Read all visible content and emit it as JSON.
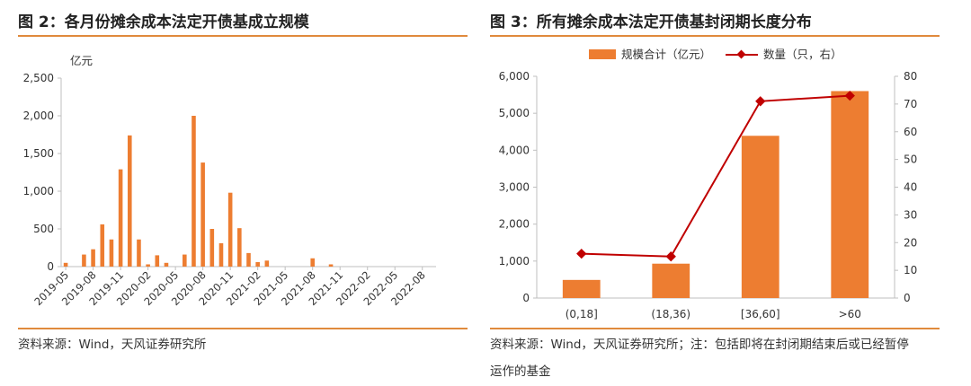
{
  "colors": {
    "bar": "#ed7d31",
    "line": "#c00000",
    "rule": "#e08a3c",
    "axis": "#bfbfbf",
    "text": "#333333"
  },
  "left": {
    "title": "图 2：各月份摊余成本法定开债基成立规模",
    "source": "资料来源：Wind，天风证券研究所"
  },
  "right": {
    "title": "图 3：所有摊余成本法定开债基封闭期长度分布",
    "source_line1": "资料来源：Wind，天风证券研究所；注：包括即将在封闭期结束后或已经暂停",
    "source_line2": "运作的基金"
  },
  "chart_data": [
    {
      "type": "bar",
      "ylabel": "亿元",
      "ylim": [
        0,
        2500
      ],
      "yticks": [
        "0",
        "500",
        "1,000",
        "1,500",
        "2,000",
        "2,500"
      ],
      "xtick_labels": [
        "2019-05",
        "2019-08",
        "2019-11",
        "2020-02",
        "2020-05",
        "2020-08",
        "2020-11",
        "2021-02",
        "2021-05",
        "2021-08",
        "2021-11",
        "2022-02",
        "2022-05",
        "2022-08"
      ],
      "categories": [
        "2019-05",
        "2019-06",
        "2019-07",
        "2019-08",
        "2019-09",
        "2019-10",
        "2019-11",
        "2019-12",
        "2020-01",
        "2020-02",
        "2020-03",
        "2020-04",
        "2020-05",
        "2020-06",
        "2020-07",
        "2020-08",
        "2020-09",
        "2020-10",
        "2020-11",
        "2020-12",
        "2021-01",
        "2021-02",
        "2021-03",
        "2021-04",
        "2021-05",
        "2021-06",
        "2021-07",
        "2021-08",
        "2021-09",
        "2021-10",
        "2021-11",
        "2021-12",
        "2022-01",
        "2022-02",
        "2022-03",
        "2022-04",
        "2022-05",
        "2022-06",
        "2022-07",
        "2022-08",
        "2022-09"
      ],
      "values": [
        50,
        0,
        160,
        230,
        560,
        360,
        1290,
        1740,
        360,
        30,
        150,
        50,
        0,
        160,
        2000,
        1380,
        500,
        310,
        980,
        510,
        180,
        60,
        80,
        0,
        0,
        0,
        0,
        110,
        0,
        30,
        0,
        0,
        0,
        0,
        0,
        0,
        0,
        0,
        0,
        0,
        0
      ],
      "grid": false
    },
    {
      "type": "bar+line",
      "categories": [
        "(0,18]",
        "(18,36)",
        "[36,60]",
        ">60"
      ],
      "series": [
        {
          "name": "规模合计（亿元）",
          "type": "bar",
          "axis": "left",
          "values": [
            490,
            930,
            4390,
            5600
          ]
        },
        {
          "name": "数量（只，右）",
          "type": "line",
          "axis": "right",
          "values": [
            16,
            15,
            71,
            73
          ]
        }
      ],
      "ylim": [
        0,
        6000
      ],
      "yticks": [
        "0",
        "1,000",
        "2,000",
        "3,000",
        "4,000",
        "5,000",
        "6,000"
      ],
      "y2lim": [
        0,
        80
      ],
      "y2ticks": [
        "0",
        "10",
        "20",
        "30",
        "40",
        "50",
        "60",
        "70",
        "80"
      ],
      "legend": "top-center",
      "grid": false
    }
  ]
}
